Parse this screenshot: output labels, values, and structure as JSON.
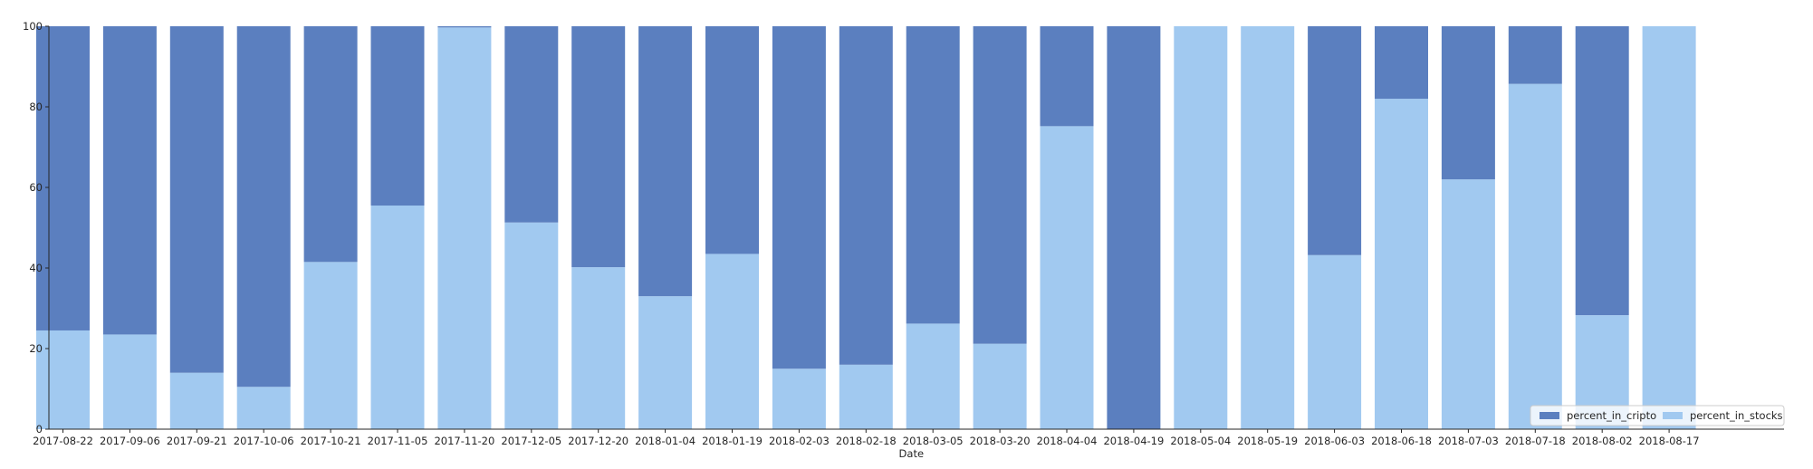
{
  "chart_data": {
    "type": "bar",
    "stacked": true,
    "title": "",
    "xlabel": "Date",
    "ylabel": "",
    "ylim": [
      0,
      100
    ],
    "yticks": [
      0,
      20,
      40,
      60,
      80,
      100
    ],
    "grid": false,
    "legend_position": "bottom-right",
    "categories": [
      "2017-08-22",
      "2017-09-06",
      "2017-09-21",
      "2017-10-06",
      "2017-10-21",
      "2017-11-05",
      "2017-11-20",
      "2017-12-05",
      "2017-12-20",
      "2018-01-04",
      "2018-01-19",
      "2018-02-03",
      "2018-02-18",
      "2018-03-05",
      "2018-03-20",
      "2018-04-04",
      "2018-04-19",
      "2018-05-04",
      "2018-05-19",
      "2018-06-03",
      "2018-06-18",
      "2018-07-03",
      "2018-07-18",
      "2018-08-02",
      "2018-08-17"
    ],
    "series": [
      {
        "name": "percent_in_stocks",
        "color": "#a1c9f0",
        "values": [
          24.5,
          23.5,
          14,
          10.5,
          41.5,
          55.5,
          99.7,
          51.3,
          40.2,
          33,
          43.5,
          15,
          16,
          26.2,
          21.2,
          75.2,
          0,
          100,
          100,
          43.2,
          82,
          62,
          85.7,
          28.3,
          100
        ]
      },
      {
        "name": "percent_in_cripto",
        "color": "#5b7fbf",
        "values": [
          75.5,
          76.5,
          86,
          89.5,
          58.5,
          44.5,
          0.3,
          48.7,
          59.8,
          67,
          56.5,
          85,
          84,
          73.8,
          78.8,
          24.8,
          100,
          0,
          0,
          56.8,
          18,
          38,
          14.3,
          71.7,
          0
        ]
      }
    ],
    "legend_order": [
      "percent_in_cripto",
      "percent_in_stocks"
    ]
  }
}
